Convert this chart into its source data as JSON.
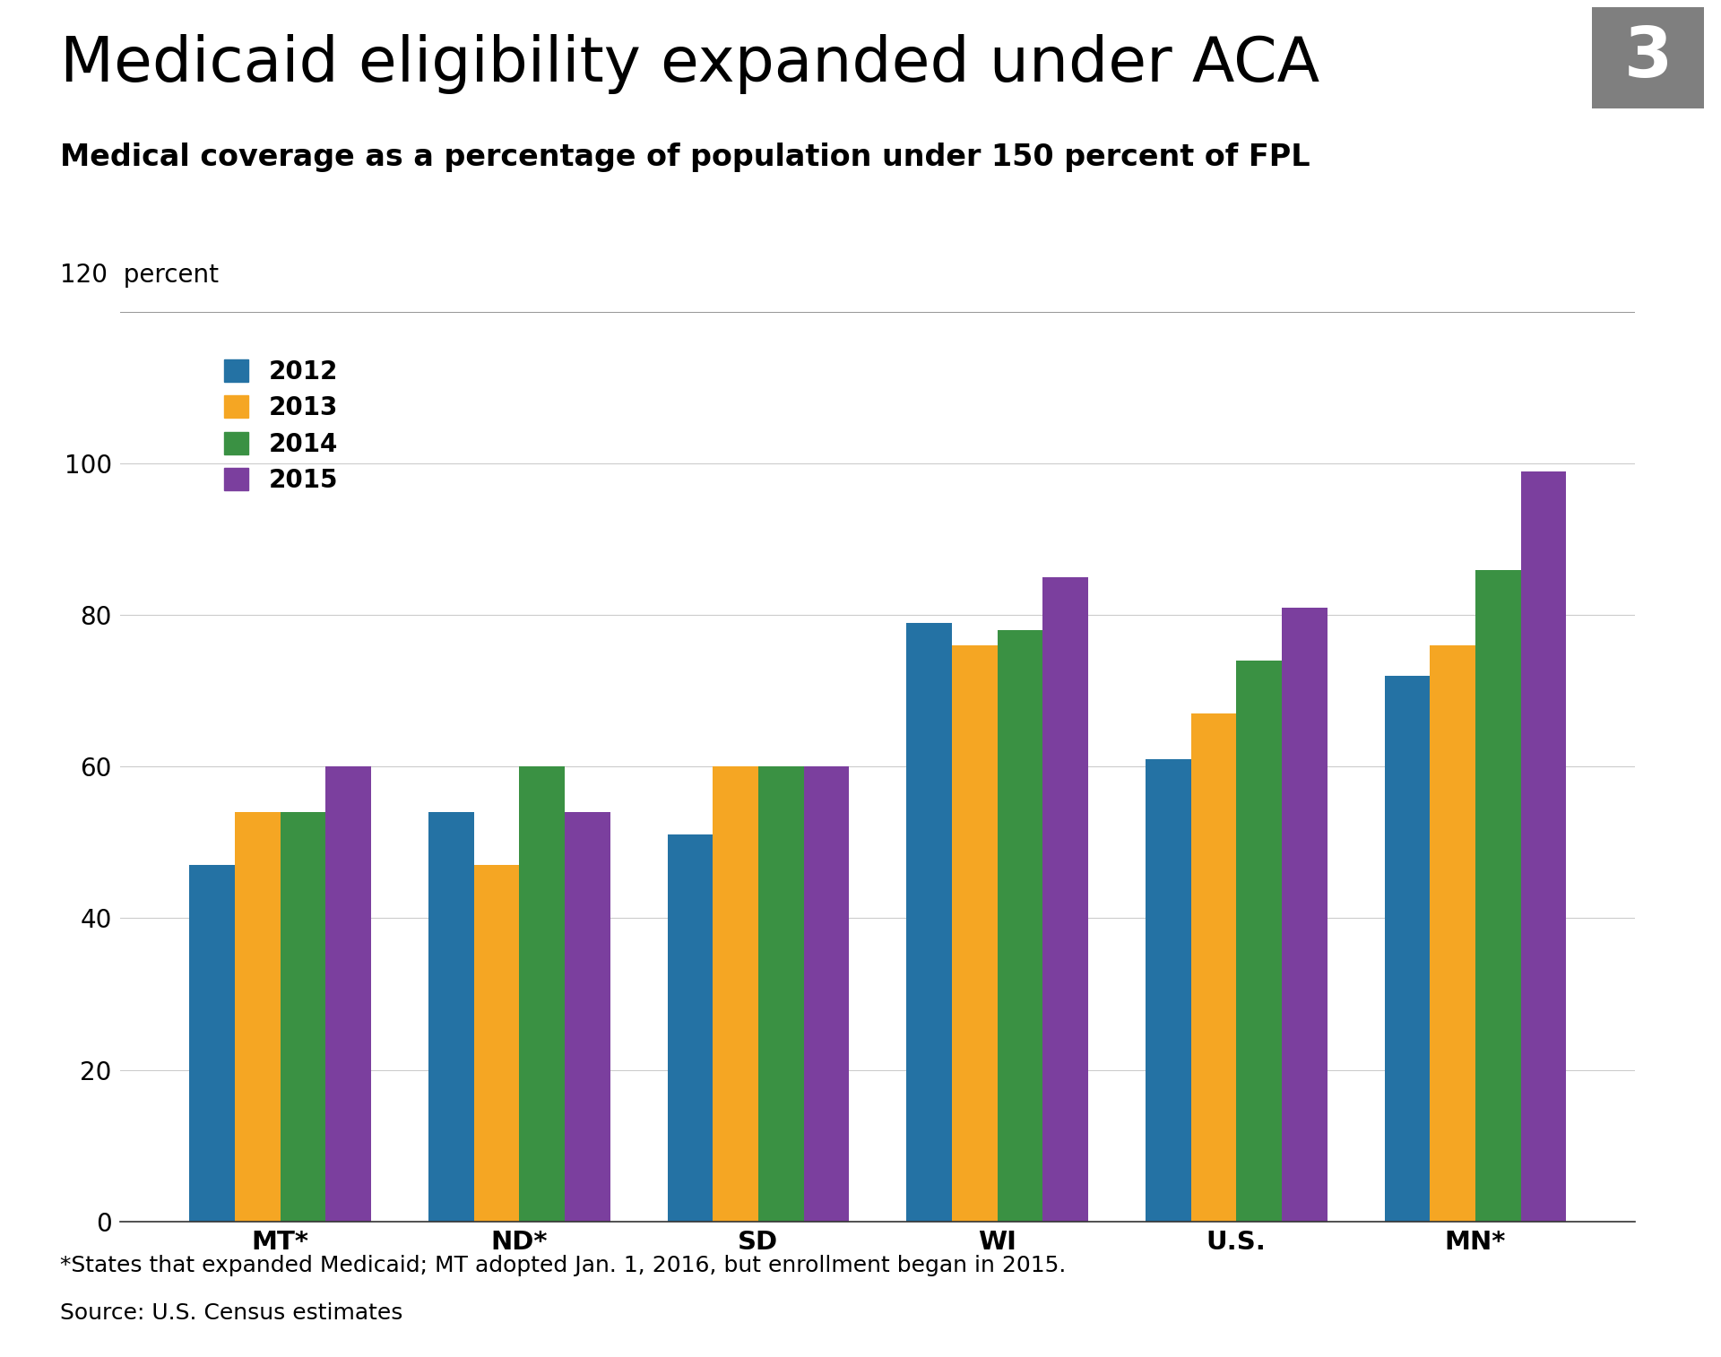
{
  "title": "Medicaid eligibility expanded under ACA",
  "subtitle": "Medical coverage as a percentage of population under 150 percent of FPL",
  "ylabel_text": "120  percent",
  "categories": [
    "MT*",
    "ND*",
    "SD",
    "WI",
    "U.S.",
    "MN*"
  ],
  "years": [
    "2012",
    "2013",
    "2014",
    "2015"
  ],
  "values": {
    "MT*": [
      47,
      54,
      54,
      60
    ],
    "ND*": [
      54,
      47,
      60,
      54
    ],
    "SD": [
      51,
      60,
      60,
      60
    ],
    "WI": [
      79,
      76,
      78,
      85
    ],
    "U.S.": [
      61,
      67,
      74,
      81
    ],
    "MN*": [
      72,
      76,
      86,
      99
    ]
  },
  "colors": [
    "#2472a4",
    "#f5a623",
    "#3a9143",
    "#7b3f9e"
  ],
  "ylim": [
    0,
    120
  ],
  "yticks": [
    0,
    20,
    40,
    60,
    80,
    100
  ],
  "background_color": "#ffffff",
  "footnote": "*States that expanded Medicaid; MT adopted Jan. 1, 2016, but enrollment began in 2015.",
  "source": "Source: U.S. Census estimates",
  "badge_number": "3",
  "badge_color": "#7f7f7f"
}
